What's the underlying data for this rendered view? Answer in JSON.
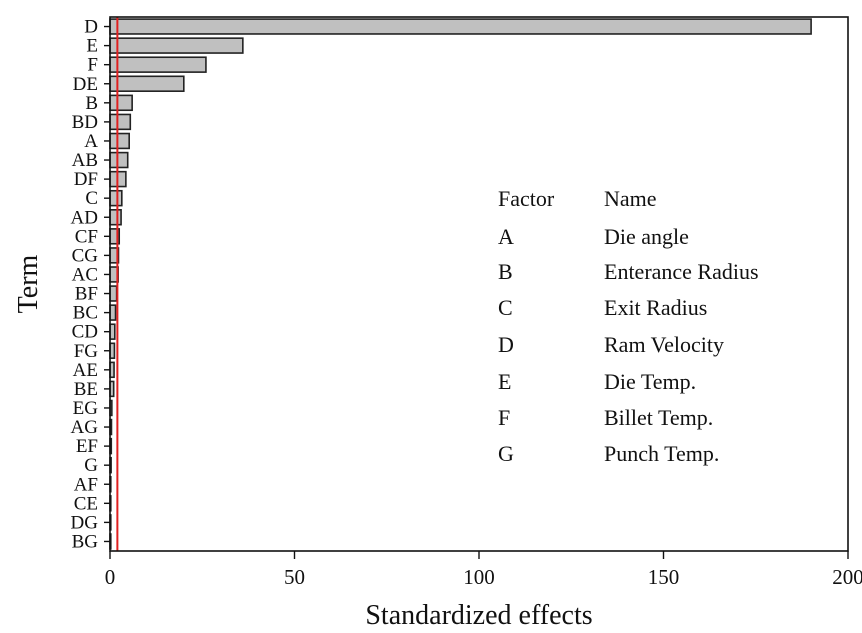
{
  "chart_data": {
    "type": "bar",
    "orientation": "horizontal",
    "xlabel": "Standardized effects",
    "ylabel": "Term",
    "xlim": [
      0,
      200
    ],
    "xticks": [
      0,
      50,
      100,
      150,
      200
    ],
    "reference_line": {
      "value": 2.0,
      "color": "#e02020"
    },
    "bar_color": "#c0c0c0",
    "categories": [
      "D",
      "E",
      "F",
      "DE",
      "B",
      "BD",
      "A",
      "AB",
      "DF",
      "C",
      "AD",
      "CF",
      "CG",
      "AC",
      "BF",
      "BC",
      "CD",
      "FG",
      "AE",
      "BE",
      "EG",
      "AG",
      "EF",
      "G",
      "AF",
      "CE",
      "DG",
      "BG"
    ],
    "values": [
      190,
      36,
      26,
      20,
      6,
      5.5,
      5.2,
      4.8,
      4.3,
      3.2,
      3.0,
      2.5,
      2.3,
      2.2,
      1.8,
      1.5,
      1.3,
      1.2,
      1.1,
      1.0,
      0.5,
      0.4,
      0.35,
      0.3,
      0.2,
      0.15,
      0.1,
      0.05
    ],
    "grid": false,
    "legend": {
      "placement": "right",
      "header": {
        "factor": "Factor",
        "name": "Name"
      },
      "rows": [
        {
          "factor": "A",
          "name": "Die angle"
        },
        {
          "factor": "B",
          "name": "Enterance Radius"
        },
        {
          "factor": "C",
          "name": "Exit Radius"
        },
        {
          "factor": "D",
          "name": "Ram Velocity"
        },
        {
          "factor": "E",
          "name": "Die Temp."
        },
        {
          "factor": "F",
          "name": "Billet Temp."
        },
        {
          "factor": "G",
          "name": "Punch Temp."
        }
      ]
    }
  }
}
